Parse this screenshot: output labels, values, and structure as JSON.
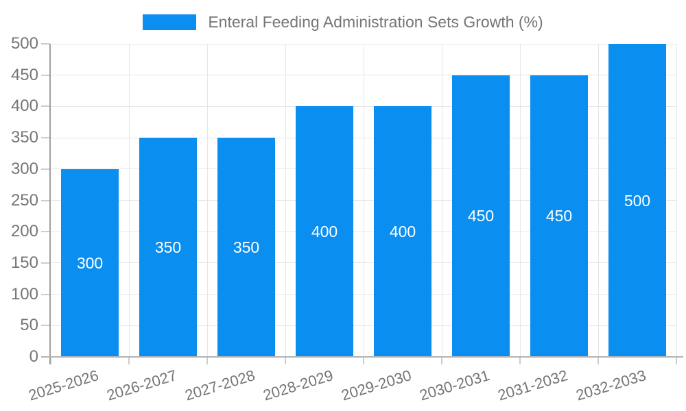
{
  "page": {
    "background": "#ffffff"
  },
  "chart_data": {
    "type": "bar",
    "title": "Enteral Feeding Administration Sets Growth (%)",
    "categories": [
      "2025-2026",
      "2026-2027",
      "2027-2028",
      "2028-2029",
      "2029-2030",
      "2030-2031",
      "2031-2032",
      "2032-2033"
    ],
    "values": [
      300,
      350,
      350,
      400,
      400,
      450,
      450,
      500
    ],
    "bar_value_labels": [
      "300",
      "350",
      "350",
      "400",
      "400",
      "450",
      "450",
      "500"
    ],
    "xlabel": "",
    "ylabel": "",
    "ylim": [
      0,
      500
    ],
    "ytick_step": 50,
    "yticks": [
      0,
      50,
      100,
      150,
      200,
      250,
      300,
      350,
      400,
      450,
      500
    ],
    "grid": true,
    "grid_horizontal": true,
    "grid_vertical": true,
    "legend_position": "top-center",
    "x_label_rotation_deg": -17,
    "bar_label_position": "inside-center",
    "bar_color": "#0a8ff0",
    "bar_label_color": "#ffffff",
    "axis_text_color": "#757575",
    "gridline_color": "#e6e6e6",
    "tick_color": "#cdcdcd",
    "y_axis_line_color": "#9f9f9f",
    "x_axis_line_color": "#b3b3b3"
  }
}
